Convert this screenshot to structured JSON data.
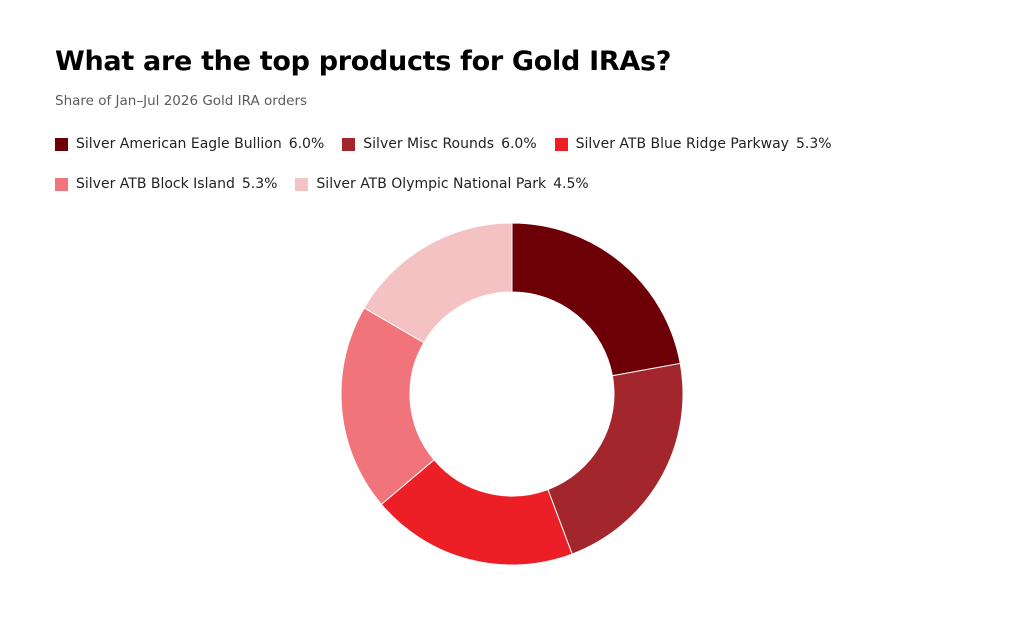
{
  "chart_data": {
    "type": "pie",
    "donut": true,
    "title": "What are the top products for Gold IRAs?",
    "subtitle": "Share of Jan–Jul 2026 Gold IRA orders",
    "legend_position": "top",
    "series": [
      {
        "name": "Silver American Eagle Bullion",
        "value": 6.0,
        "label": "6.0%",
        "color": "#6d0006"
      },
      {
        "name": "Silver Misc Rounds",
        "value": 6.0,
        "label": "6.0%",
        "color": "#a3262d"
      },
      {
        "name": "Silver ATB Blue Ridge Parkway",
        "value": 5.3,
        "label": "5.3%",
        "color": "#ec1f26"
      },
      {
        "name": "Silver ATB Block Island",
        "value": 5.3,
        "label": "5.3%",
        "color": "#f07479"
      },
      {
        "name": "Silver ATB Olympic National Park",
        "value": 4.5,
        "label": "4.5%",
        "color": "#f5c2c3"
      }
    ]
  }
}
